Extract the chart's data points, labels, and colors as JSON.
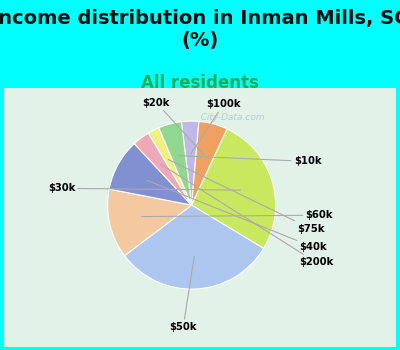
{
  "title": "Income distribution in Inman Mills, SC\n(%)",
  "subtitle": "All residents",
  "title_fontsize": 14,
  "subtitle_fontsize": 12,
  "background_color": "#00FFFF",
  "chart_bg": "#ddf0e8",
  "labels": [
    "$100k",
    "$20k",
    "$30k",
    "$50k",
    "$60k",
    "$40k",
    "$200k",
    "$75k",
    "$10k"
  ],
  "values": [
    3,
    5,
    24,
    28,
    12,
    9,
    3,
    2,
    4
  ],
  "colors": [
    "#c0b8e8",
    "#f0a060",
    "#c8e860",
    "#adc6f0",
    "#f5c9a0",
    "#8090d0",
    "#f0a8b8",
    "#f0f080",
    "#90d890"
  ],
  "startangle": 97,
  "watermark": "   City-Data.com"
}
